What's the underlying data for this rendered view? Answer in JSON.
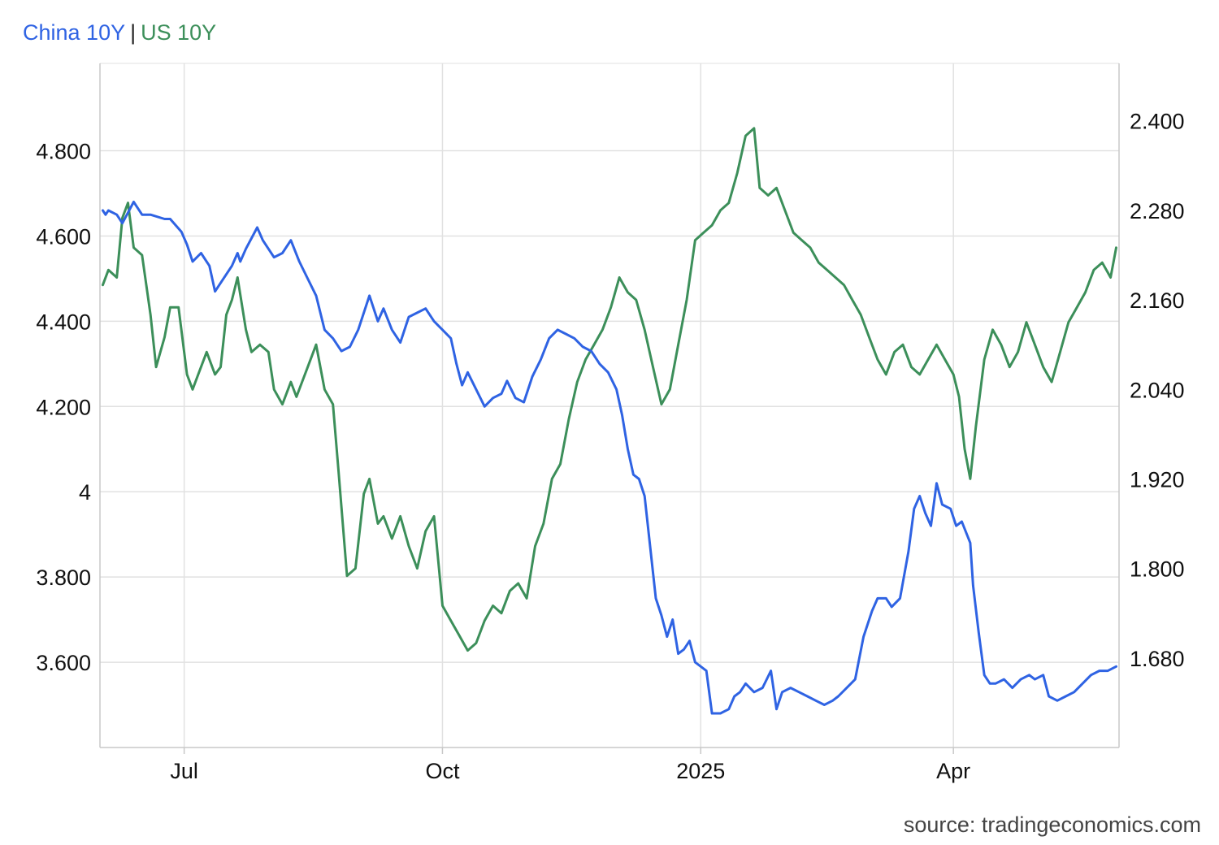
{
  "legend": {
    "left_label": "China 10Y",
    "separator": "|",
    "right_label": "US 10Y"
  },
  "source": "source: tradingeconomics.com",
  "colors": {
    "china": "#2f63e3",
    "us": "#3c8f5a",
    "grid": "#e1e1e1",
    "axis": "#c8c8c8",
    "text": "#111111"
  },
  "chart_data": {
    "type": "line",
    "grid": true,
    "x_axis": {
      "type": "date",
      "range": [
        "2024-06-01",
        "2025-05-30"
      ],
      "ticks": [
        {
          "date": "2024-07-01",
          "label": "Jul"
        },
        {
          "date": "2024-10-01",
          "label": "Oct"
        },
        {
          "date": "2025-01-01",
          "label": "2025"
        },
        {
          "date": "2025-04-01",
          "label": "Apr"
        }
      ]
    },
    "y_left": {
      "range": [
        3.4,
        5.005
      ],
      "ticks": [
        3.6,
        3.8,
        4.0,
        4.2,
        4.4,
        4.6,
        4.8
      ],
      "tick_labels": [
        "3.600",
        "3.800",
        "4",
        "4.200",
        "4.400",
        "4.600",
        "4.800"
      ]
    },
    "y_right": {
      "range": [
        1.56,
        2.477
      ],
      "ticks": [
        1.68,
        1.8,
        1.92,
        2.04,
        2.16,
        2.28,
        2.4
      ],
      "tick_labels": [
        "1.680",
        "1.800",
        "1.920",
        "2.040",
        "2.160",
        "2.280",
        "2.400"
      ]
    },
    "series": [
      {
        "name": "China 10Y",
        "axis": "left",
        "color": "#2f63e3",
        "points": [
          [
            "2024-06-02",
            4.66
          ],
          [
            "2024-06-03",
            4.65
          ],
          [
            "2024-06-04",
            4.66
          ],
          [
            "2024-06-07",
            4.65
          ],
          [
            "2024-06-09",
            4.63
          ],
          [
            "2024-06-13",
            4.68
          ],
          [
            "2024-06-16",
            4.65
          ],
          [
            "2024-06-19",
            4.65
          ],
          [
            "2024-06-24",
            4.64
          ],
          [
            "2024-06-26",
            4.64
          ],
          [
            "2024-06-30",
            4.61
          ],
          [
            "2024-07-02",
            4.58
          ],
          [
            "2024-07-04",
            4.54
          ],
          [
            "2024-07-07",
            4.56
          ],
          [
            "2024-07-10",
            4.53
          ],
          [
            "2024-07-12",
            4.47
          ],
          [
            "2024-07-14",
            4.49
          ],
          [
            "2024-07-18",
            4.53
          ],
          [
            "2024-07-20",
            4.56
          ],
          [
            "2024-07-21",
            4.54
          ],
          [
            "2024-07-23",
            4.57
          ],
          [
            "2024-07-27",
            4.62
          ],
          [
            "2024-07-29",
            4.59
          ],
          [
            "2024-08-02",
            4.55
          ],
          [
            "2024-08-05",
            4.56
          ],
          [
            "2024-08-08",
            4.59
          ],
          [
            "2024-08-11",
            4.54
          ],
          [
            "2024-08-14",
            4.5
          ],
          [
            "2024-08-17",
            4.46
          ],
          [
            "2024-08-20",
            4.38
          ],
          [
            "2024-08-23",
            4.36
          ],
          [
            "2024-08-26",
            4.33
          ],
          [
            "2024-08-29",
            4.34
          ],
          [
            "2024-09-01",
            4.38
          ],
          [
            "2024-09-05",
            4.46
          ],
          [
            "2024-09-08",
            4.4
          ],
          [
            "2024-09-10",
            4.43
          ],
          [
            "2024-09-13",
            4.38
          ],
          [
            "2024-09-16",
            4.35
          ],
          [
            "2024-09-19",
            4.41
          ],
          [
            "2024-09-22",
            4.42
          ],
          [
            "2024-09-25",
            4.43
          ],
          [
            "2024-09-28",
            4.4
          ],
          [
            "2024-10-01",
            4.38
          ],
          [
            "2024-10-04",
            4.36
          ],
          [
            "2024-10-06",
            4.3
          ],
          [
            "2024-10-08",
            4.25
          ],
          [
            "2024-10-10",
            4.28
          ],
          [
            "2024-10-13",
            4.24
          ],
          [
            "2024-10-16",
            4.2
          ],
          [
            "2024-10-19",
            4.22
          ],
          [
            "2024-10-22",
            4.23
          ],
          [
            "2024-10-24",
            4.26
          ],
          [
            "2024-10-27",
            4.22
          ],
          [
            "2024-10-30",
            4.21
          ],
          [
            "2024-11-02",
            4.27
          ],
          [
            "2024-11-05",
            4.31
          ],
          [
            "2024-11-08",
            4.36
          ],
          [
            "2024-11-11",
            4.38
          ],
          [
            "2024-11-14",
            4.37
          ],
          [
            "2024-11-17",
            4.36
          ],
          [
            "2024-11-20",
            4.34
          ],
          [
            "2024-11-23",
            4.33
          ],
          [
            "2024-11-26",
            4.3
          ],
          [
            "2024-11-29",
            4.28
          ],
          [
            "2024-12-02",
            4.24
          ],
          [
            "2024-12-04",
            4.18
          ],
          [
            "2024-12-06",
            4.1
          ],
          [
            "2024-12-08",
            4.04
          ],
          [
            "2024-12-10",
            4.03
          ],
          [
            "2024-12-12",
            3.99
          ],
          [
            "2024-12-14",
            3.87
          ],
          [
            "2024-12-16",
            3.75
          ],
          [
            "2024-12-18",
            3.71
          ],
          [
            "2024-12-20",
            3.66
          ],
          [
            "2024-12-22",
            3.7
          ],
          [
            "2024-12-24",
            3.62
          ],
          [
            "2024-12-26",
            3.63
          ],
          [
            "2024-12-28",
            3.65
          ],
          [
            "2024-12-30",
            3.6
          ],
          [
            "2025-01-01",
            3.59
          ],
          [
            "2025-01-03",
            3.58
          ],
          [
            "2025-01-05",
            3.48
          ],
          [
            "2025-01-08",
            3.48
          ],
          [
            "2025-01-11",
            3.49
          ],
          [
            "2025-01-13",
            3.52
          ],
          [
            "2025-01-15",
            3.53
          ],
          [
            "2025-01-17",
            3.55
          ],
          [
            "2025-01-20",
            3.53
          ],
          [
            "2025-01-23",
            3.54
          ],
          [
            "2025-01-26",
            3.58
          ],
          [
            "2025-01-28",
            3.49
          ],
          [
            "2025-01-30",
            3.53
          ],
          [
            "2025-02-02",
            3.54
          ],
          [
            "2025-02-05",
            3.53
          ],
          [
            "2025-02-08",
            3.52
          ],
          [
            "2025-02-11",
            3.51
          ],
          [
            "2025-02-14",
            3.5
          ],
          [
            "2025-02-17",
            3.51
          ],
          [
            "2025-02-19",
            3.52
          ],
          [
            "2025-02-22",
            3.54
          ],
          [
            "2025-02-25",
            3.56
          ],
          [
            "2025-02-28",
            3.66
          ],
          [
            "2025-03-03",
            3.72
          ],
          [
            "2025-03-05",
            3.75
          ],
          [
            "2025-03-08",
            3.75
          ],
          [
            "2025-03-10",
            3.73
          ],
          [
            "2025-03-13",
            3.75
          ],
          [
            "2025-03-16",
            3.86
          ],
          [
            "2025-03-18",
            3.96
          ],
          [
            "2025-03-20",
            3.99
          ],
          [
            "2025-03-22",
            3.95
          ],
          [
            "2025-03-24",
            3.92
          ],
          [
            "2025-03-26",
            4.02
          ],
          [
            "2025-03-28",
            3.97
          ],
          [
            "2025-03-31",
            3.96
          ],
          [
            "2025-04-02",
            3.92
          ],
          [
            "2025-04-04",
            3.93
          ],
          [
            "2025-04-07",
            3.88
          ],
          [
            "2025-04-08",
            3.78
          ],
          [
            "2025-04-10",
            3.67
          ],
          [
            "2025-04-12",
            3.57
          ],
          [
            "2025-04-14",
            3.55
          ],
          [
            "2025-04-16",
            3.55
          ],
          [
            "2025-04-19",
            3.56
          ],
          [
            "2025-04-22",
            3.54
          ],
          [
            "2025-04-25",
            3.56
          ],
          [
            "2025-04-28",
            3.57
          ],
          [
            "2025-04-30",
            3.56
          ],
          [
            "2025-05-03",
            3.57
          ],
          [
            "2025-05-05",
            3.52
          ],
          [
            "2025-05-08",
            3.51
          ],
          [
            "2025-05-11",
            3.52
          ],
          [
            "2025-05-14",
            3.53
          ],
          [
            "2025-05-17",
            3.55
          ],
          [
            "2025-05-20",
            3.57
          ],
          [
            "2025-05-23",
            3.58
          ],
          [
            "2025-05-26",
            3.58
          ],
          [
            "2025-05-29",
            3.59
          ]
        ]
      },
      {
        "name": "US 10Y",
        "axis": "right",
        "color": "#3c8f5a",
        "points": [
          [
            "2024-06-02",
            2.18
          ],
          [
            "2024-06-04",
            2.2
          ],
          [
            "2024-06-07",
            2.19
          ],
          [
            "2024-06-09",
            2.27
          ],
          [
            "2024-06-11",
            2.29
          ],
          [
            "2024-06-13",
            2.23
          ],
          [
            "2024-06-16",
            2.22
          ],
          [
            "2024-06-19",
            2.14
          ],
          [
            "2024-06-21",
            2.07
          ],
          [
            "2024-06-24",
            2.11
          ],
          [
            "2024-06-26",
            2.15
          ],
          [
            "2024-06-29",
            2.15
          ],
          [
            "2024-07-02",
            2.06
          ],
          [
            "2024-07-04",
            2.04
          ],
          [
            "2024-07-06",
            2.06
          ],
          [
            "2024-07-09",
            2.09
          ],
          [
            "2024-07-12",
            2.06
          ],
          [
            "2024-07-14",
            2.07
          ],
          [
            "2024-07-16",
            2.14
          ],
          [
            "2024-07-18",
            2.16
          ],
          [
            "2024-07-20",
            2.19
          ],
          [
            "2024-07-23",
            2.12
          ],
          [
            "2024-07-25",
            2.09
          ],
          [
            "2024-07-28",
            2.1
          ],
          [
            "2024-07-31",
            2.09
          ],
          [
            "2024-08-02",
            2.04
          ],
          [
            "2024-08-05",
            2.02
          ],
          [
            "2024-08-08",
            2.05
          ],
          [
            "2024-08-10",
            2.03
          ],
          [
            "2024-08-13",
            2.06
          ],
          [
            "2024-08-17",
            2.1
          ],
          [
            "2024-08-20",
            2.04
          ],
          [
            "2024-08-23",
            2.02
          ],
          [
            "2024-08-25",
            1.93
          ],
          [
            "2024-08-28",
            1.79
          ],
          [
            "2024-08-31",
            1.8
          ],
          [
            "2024-09-03",
            1.9
          ],
          [
            "2024-09-05",
            1.92
          ],
          [
            "2024-09-08",
            1.86
          ],
          [
            "2024-09-10",
            1.87
          ],
          [
            "2024-09-13",
            1.84
          ],
          [
            "2024-09-16",
            1.87
          ],
          [
            "2024-09-19",
            1.83
          ],
          [
            "2024-09-22",
            1.8
          ],
          [
            "2024-09-25",
            1.85
          ],
          [
            "2024-09-28",
            1.87
          ],
          [
            "2024-10-01",
            1.75
          ],
          [
            "2024-10-04",
            1.73
          ],
          [
            "2024-10-07",
            1.71
          ],
          [
            "2024-10-10",
            1.69
          ],
          [
            "2024-10-13",
            1.7
          ],
          [
            "2024-10-16",
            1.73
          ],
          [
            "2024-10-19",
            1.75
          ],
          [
            "2024-10-22",
            1.74
          ],
          [
            "2024-10-25",
            1.77
          ],
          [
            "2024-10-28",
            1.78
          ],
          [
            "2024-10-31",
            1.76
          ],
          [
            "2024-11-03",
            1.83
          ],
          [
            "2024-11-06",
            1.86
          ],
          [
            "2024-11-09",
            1.92
          ],
          [
            "2024-11-12",
            1.94
          ],
          [
            "2024-11-15",
            2.0
          ],
          [
            "2024-11-18",
            2.05
          ],
          [
            "2024-11-21",
            2.08
          ],
          [
            "2024-11-24",
            2.1
          ],
          [
            "2024-11-27",
            2.12
          ],
          [
            "2024-11-30",
            2.15
          ],
          [
            "2024-12-03",
            2.19
          ],
          [
            "2024-12-06",
            2.17
          ],
          [
            "2024-12-09",
            2.16
          ],
          [
            "2024-12-12",
            2.12
          ],
          [
            "2024-12-15",
            2.07
          ],
          [
            "2024-12-18",
            2.02
          ],
          [
            "2024-12-21",
            2.04
          ],
          [
            "2024-12-24",
            2.1
          ],
          [
            "2024-12-27",
            2.16
          ],
          [
            "2024-12-30",
            2.24
          ],
          [
            "2025-01-02",
            2.25
          ],
          [
            "2025-01-05",
            2.26
          ],
          [
            "2025-01-08",
            2.28
          ],
          [
            "2025-01-11",
            2.29
          ],
          [
            "2025-01-14",
            2.33
          ],
          [
            "2025-01-17",
            2.38
          ],
          [
            "2025-01-20",
            2.39
          ],
          [
            "2025-01-22",
            2.31
          ],
          [
            "2025-01-25",
            2.3
          ],
          [
            "2025-01-28",
            2.31
          ],
          [
            "2025-01-31",
            2.28
          ],
          [
            "2025-02-03",
            2.25
          ],
          [
            "2025-02-06",
            2.24
          ],
          [
            "2025-02-09",
            2.23
          ],
          [
            "2025-02-12",
            2.21
          ],
          [
            "2025-02-15",
            2.2
          ],
          [
            "2025-02-18",
            2.19
          ],
          [
            "2025-02-21",
            2.18
          ],
          [
            "2025-02-24",
            2.16
          ],
          [
            "2025-02-27",
            2.14
          ],
          [
            "2025-03-02",
            2.11
          ],
          [
            "2025-03-05",
            2.08
          ],
          [
            "2025-03-08",
            2.06
          ],
          [
            "2025-03-11",
            2.09
          ],
          [
            "2025-03-14",
            2.1
          ],
          [
            "2025-03-17",
            2.07
          ],
          [
            "2025-03-20",
            2.06
          ],
          [
            "2025-03-23",
            2.08
          ],
          [
            "2025-03-26",
            2.1
          ],
          [
            "2025-03-29",
            2.08
          ],
          [
            "2025-04-01",
            2.06
          ],
          [
            "2025-04-03",
            2.03
          ],
          [
            "2025-04-05",
            1.96
          ],
          [
            "2025-04-07",
            1.92
          ],
          [
            "2025-04-09",
            1.99
          ],
          [
            "2025-04-12",
            2.08
          ],
          [
            "2025-04-15",
            2.12
          ],
          [
            "2025-04-18",
            2.1
          ],
          [
            "2025-04-21",
            2.07
          ],
          [
            "2025-04-24",
            2.09
          ],
          [
            "2025-04-27",
            2.13
          ],
          [
            "2025-04-30",
            2.1
          ],
          [
            "2025-05-03",
            2.07
          ],
          [
            "2025-05-06",
            2.05
          ],
          [
            "2025-05-09",
            2.09
          ],
          [
            "2025-05-12",
            2.13
          ],
          [
            "2025-05-15",
            2.15
          ],
          [
            "2025-05-18",
            2.17
          ],
          [
            "2025-05-21",
            2.2
          ],
          [
            "2025-05-24",
            2.21
          ],
          [
            "2025-05-27",
            2.19
          ],
          [
            "2025-05-29",
            2.23
          ]
        ]
      }
    ]
  }
}
